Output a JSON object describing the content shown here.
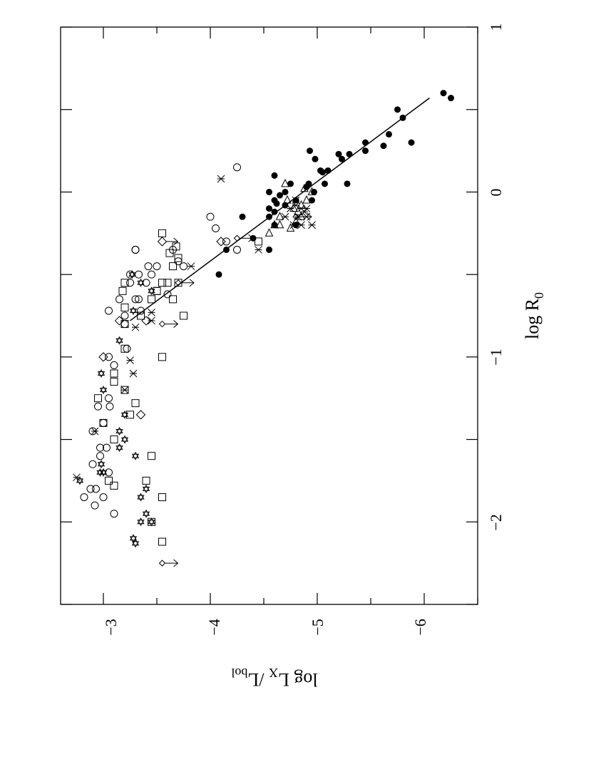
{
  "chart_data": {
    "type": "scatter",
    "orientation": "rotated 90 degrees clockwise (landscape figure placed on portrait page)",
    "xlabel": "log R",
    "xlabel_sub": "0",
    "ylabel": "log L",
    "ylabel_sub1": "X",
    "ylabel_mid": " /L",
    "ylabel_sub2": "bol",
    "xlim": [
      -2.5,
      1
    ],
    "ylim": [
      -2.6,
      -6.5
    ],
    "x_ticks": [
      -2,
      -1,
      0,
      1
    ],
    "x_tick_labels": [
      "−2",
      "−1",
      "0",
      "1"
    ],
    "y_ticks": [
      -3,
      -4,
      -5,
      -6
    ],
    "y_tick_labels": [
      "−3",
      "−4",
      "−5",
      "−6"
    ],
    "grid": false,
    "fit_line": [
      {
        "x": -0.78,
        "y": -3.25
      },
      {
        "x": 0.57,
        "y": -6.05
      }
    ],
    "series": [
      {
        "marker": "filled-circle",
        "points": [
          [
            -0.5,
            -4.08
          ],
          [
            -0.35,
            -4.15
          ],
          [
            -0.35,
            -4.55
          ],
          [
            -0.28,
            -4.4
          ],
          [
            -0.2,
            -4.6
          ],
          [
            -0.15,
            -4.3
          ],
          [
            -0.1,
            -4.55
          ],
          [
            -0.08,
            -4.7
          ],
          [
            -0.05,
            -4.6
          ],
          [
            -0.05,
            -4.8
          ],
          [
            -0.02,
            -4.65
          ],
          [
            0.0,
            -4.7
          ],
          [
            0.03,
            -4.9
          ],
          [
            -0.15,
            -4.55
          ],
          [
            -0.12,
            -4.6
          ],
          [
            0.0,
            -4.55
          ],
          [
            0.05,
            -4.75
          ],
          [
            -0.2,
            -4.8
          ],
          [
            -0.07,
            -4.62
          ],
          [
            0.1,
            -4.6
          ],
          [
            0.05,
            -4.92
          ],
          [
            -0.05,
            -4.95
          ],
          [
            0.0,
            -4.97
          ],
          [
            0.13,
            -5.03
          ],
          [
            0.05,
            -5.07
          ],
          [
            0.13,
            -5.1
          ],
          [
            0.05,
            -5.28
          ],
          [
            0.2,
            -4.98
          ],
          [
            0.2,
            -5.23
          ],
          [
            0.23,
            -5.2
          ],
          [
            0.23,
            -5.3
          ],
          [
            0.25,
            -5.45
          ],
          [
            0.3,
            -5.45
          ],
          [
            0.28,
            -5.62
          ],
          [
            0.35,
            -5.67
          ],
          [
            0.3,
            -5.88
          ],
          [
            0.25,
            -4.93
          ],
          [
            0.12,
            -5.05
          ],
          [
            0.45,
            -5.8
          ],
          [
            0.5,
            -5.75
          ],
          [
            0.6,
            -6.18
          ],
          [
            0.57,
            -6.25
          ]
        ]
      },
      {
        "marker": "open-circle",
        "points": [
          [
            -1.85,
            -2.82
          ],
          [
            -1.9,
            -2.92
          ],
          [
            -1.95,
            -3.1
          ],
          [
            -1.85,
            -3.0
          ],
          [
            -1.8,
            -2.88
          ],
          [
            -1.65,
            -2.9
          ],
          [
            -1.55,
            -3.03
          ],
          [
            -1.6,
            -2.97
          ],
          [
            -1.4,
            -3.0
          ],
          [
            -1.45,
            -2.9
          ],
          [
            -1.3,
            -2.95
          ],
          [
            -1.25,
            -3.05
          ],
          [
            -1.05,
            -3.1
          ],
          [
            -1.0,
            -3.05
          ],
          [
            -0.8,
            -3.2
          ],
          [
            -0.95,
            -3.22
          ],
          [
            -0.75,
            -3.2
          ],
          [
            -0.55,
            -3.25
          ],
          [
            -0.5,
            -3.33
          ],
          [
            -0.5,
            -3.45
          ],
          [
            -0.55,
            -3.4
          ],
          [
            -0.45,
            -3.5
          ],
          [
            -0.45,
            -3.42
          ],
          [
            -0.35,
            -3.65
          ],
          [
            -0.65,
            -3.3
          ],
          [
            -0.72,
            -3.35
          ],
          [
            -0.62,
            -3.6
          ],
          [
            -0.42,
            -3.7
          ],
          [
            -0.3,
            -4.15
          ],
          [
            -0.22,
            -4.05
          ],
          [
            -0.35,
            -4.25
          ],
          [
            -0.45,
            -3.75
          ],
          [
            -0.72,
            -3.05
          ],
          [
            -0.35,
            -3.3
          ],
          [
            -0.65,
            -3.33
          ],
          [
            -0.65,
            -3.15
          ],
          [
            -1.7,
            -3.05
          ],
          [
            -1.55,
            -2.97
          ],
          [
            -1.8,
            -2.93
          ],
          [
            -1.3,
            -3.06
          ],
          [
            -0.35,
            -3.3
          ],
          [
            -0.5,
            -3.25
          ],
          [
            -0.15,
            -4.0
          ],
          [
            0.15,
            -4.25
          ]
        ]
      },
      {
        "marker": "open-square",
        "points": [
          [
            -2.12,
            -3.55
          ],
          [
            -2.0,
            -3.45
          ],
          [
            -1.85,
            -3.55
          ],
          [
            -1.78,
            -3.1
          ],
          [
            -1.75,
            -3.05
          ],
          [
            -1.6,
            -3.45
          ],
          [
            -1.5,
            -3.1
          ],
          [
            -1.35,
            -3.25
          ],
          [
            -1.28,
            -3.3
          ],
          [
            -1.2,
            -3.2
          ],
          [
            -1.15,
            -3.1
          ],
          [
            -1.1,
            -3.1
          ],
          [
            -1.0,
            -3.55
          ],
          [
            -0.95,
            -3.2
          ],
          [
            -0.8,
            -3.2
          ],
          [
            -0.75,
            -3.35
          ],
          [
            -0.7,
            -3.2
          ],
          [
            -0.65,
            -3.45
          ],
          [
            -0.6,
            -3.5
          ],
          [
            -0.6,
            -3.5
          ],
          [
            -0.55,
            -3.55
          ],
          [
            -0.55,
            -3.6
          ],
          [
            -0.4,
            -3.7
          ],
          [
            -0.45,
            -3.65
          ],
          [
            -0.37,
            -3.62
          ],
          [
            -0.33,
            -3.68
          ],
          [
            -0.25,
            -3.55
          ],
          [
            -0.3,
            -4.45
          ],
          [
            -0.55,
            -3.7
          ],
          [
            -0.6,
            -3.18
          ],
          [
            -0.75,
            -3.75
          ],
          [
            -0.65,
            -3.65
          ],
          [
            -0.55,
            -3.2
          ],
          [
            -1.75,
            -3.4
          ],
          [
            -1.25,
            -2.95
          ],
          [
            -1.4,
            -3.0
          ]
        ]
      },
      {
        "marker": "open-diamond",
        "points": [
          [
            -1.35,
            -3.35
          ],
          [
            -0.78,
            -3.15
          ],
          [
            -0.78,
            -3.4
          ],
          [
            -0.3,
            -4.1
          ],
          [
            -1.0,
            -3.0
          ]
        ]
      },
      {
        "marker": "star-of-david",
        "points": [
          [
            -1.75,
            -2.78
          ],
          [
            -1.7,
            -3.0
          ],
          [
            -1.6,
            -3.3
          ],
          [
            -1.55,
            -3.15
          ],
          [
            -1.5,
            -3.2
          ],
          [
            -1.45,
            -3.15
          ],
          [
            -1.35,
            -3.2
          ],
          [
            -1.2,
            -3.0
          ],
          [
            -1.1,
            -2.98
          ],
          [
            -0.9,
            -3.15
          ],
          [
            -0.55,
            -3.35
          ],
          [
            -0.6,
            -3.45
          ],
          [
            -0.5,
            -3.27
          ],
          [
            -1.8,
            -3.4
          ],
          [
            -1.85,
            -3.35
          ],
          [
            -1.95,
            -3.4
          ],
          [
            -2.0,
            -3.35
          ],
          [
            -2.1,
            -3.28
          ],
          [
            -2.13,
            -3.3
          ],
          [
            -2.0,
            -3.45
          ],
          [
            -0.72,
            -3.28
          ],
          [
            -1.65,
            -2.98
          ],
          [
            -1.7,
            -2.97
          ]
        ]
      },
      {
        "marker": "x-cross",
        "points": [
          [
            -1.73,
            -2.75
          ],
          [
            -1.45,
            -2.92
          ],
          [
            -1.2,
            -3.2
          ],
          [
            -1.1,
            -3.28
          ],
          [
            -1.02,
            -3.25
          ],
          [
            -0.82,
            -3.3
          ],
          [
            -0.78,
            -3.45
          ],
          [
            -0.73,
            -3.45
          ],
          [
            -0.45,
            -3.82
          ],
          [
            -0.35,
            -4.45
          ],
          [
            -0.15,
            -4.7
          ],
          [
            -0.1,
            -4.75
          ],
          [
            -0.05,
            -4.8
          ],
          [
            -0.1,
            -4.85
          ],
          [
            -0.1,
            -4.9
          ],
          [
            -0.15,
            -4.82
          ],
          [
            -0.2,
            -4.85
          ],
          [
            -0.1,
            -4.75
          ],
          [
            0.08,
            -4.1
          ],
          [
            -0.2,
            -4.78
          ],
          [
            -0.12,
            -4.88
          ],
          [
            -0.15,
            -4.9
          ],
          [
            -0.08,
            -4.8
          ],
          [
            -0.2,
            -4.95
          ]
        ]
      },
      {
        "marker": "open-triangle-left",
        "points": [
          [
            0.05,
            -4.7
          ],
          [
            -0.05,
            -4.72
          ],
          [
            -0.15,
            -4.85
          ],
          [
            -0.22,
            -4.75
          ],
          [
            -0.25,
            -4.55
          ],
          [
            -0.2,
            -4.6
          ],
          [
            -0.15,
            -4.65
          ],
          [
            -0.12,
            -4.82
          ],
          [
            -0.1,
            -4.78
          ],
          [
            -0.08,
            -4.85
          ],
          [
            -0.05,
            -4.9
          ],
          [
            0.0,
            -4.95
          ],
          [
            0.02,
            -4.88
          ],
          [
            -0.18,
            -4.8
          ],
          [
            -0.2,
            -4.65
          ]
        ]
      },
      {
        "marker": "upper-limit-arrow",
        "points": [
          [
            -2.25,
            -3.55
          ],
          [
            -0.8,
            -3.55
          ],
          [
            -0.28,
            -4.25
          ],
          [
            -0.15,
            -4.8
          ],
          [
            -0.55,
            -3.7
          ]
        ]
      },
      {
        "marker": "upper-limit-diamond",
        "points": [
          [
            -0.3,
            -3.55
          ]
        ]
      }
    ]
  }
}
